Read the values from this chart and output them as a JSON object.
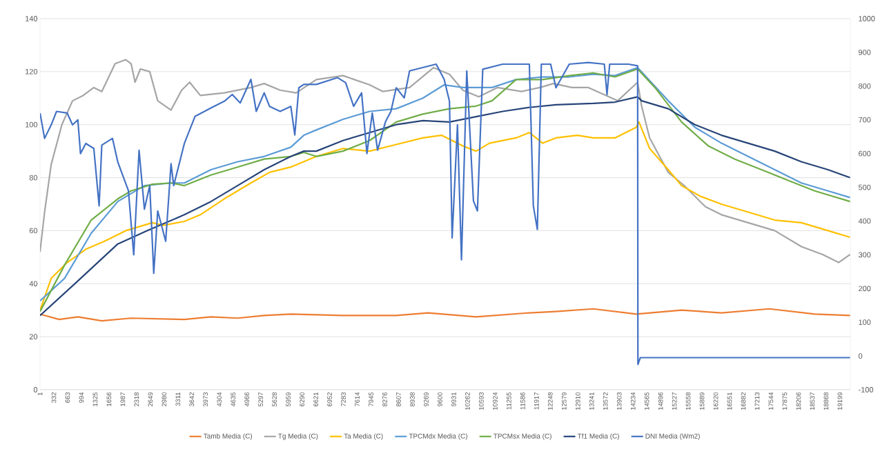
{
  "chart_data": {
    "type": "line",
    "xlim": [
      1,
      19450
    ],
    "ylim": [
      0,
      140
    ],
    "y2lim": [
      -100,
      1000
    ],
    "xticks": [
      1,
      332,
      663,
      994,
      1325,
      1656,
      1987,
      2318,
      2649,
      2980,
      3311,
      3642,
      3973,
      4304,
      4635,
      4966,
      5297,
      5628,
      5959,
      6290,
      6621,
      6952,
      7283,
      7614,
      7945,
      8276,
      8607,
      8938,
      9269,
      9600,
      9931,
      10262,
      10593,
      10924,
      11255,
      11586,
      11917,
      12248,
      12579,
      12910,
      13241,
      13572,
      13903,
      14234,
      14565,
      14896,
      15227,
      15558,
      15889,
      16220,
      16551,
      16882,
      17213,
      17544,
      17875,
      18206,
      18537,
      18868,
      19199
    ],
    "yticks": [
      0,
      20,
      40,
      60,
      80,
      100,
      120,
      140
    ],
    "y2ticks": [
      -100,
      0,
      100,
      200,
      300,
      400,
      500,
      600,
      700,
      800,
      900,
      1000
    ],
    "grid": "y",
    "legend": "bottom",
    "series": [
      {
        "name": "Tamb Media (C)",
        "color": "#ed7d31",
        "x": [
          1,
          461,
          908,
          1483,
          2186,
          3465,
          4103,
          4742,
          5381,
          6020,
          7272,
          8550,
          9317,
          10467,
          11745,
          12384,
          13279,
          14312,
          15399,
          16357,
          17507,
          18594,
          19443
        ],
        "values": [
          28.5,
          26.5,
          27.5,
          26,
          27,
          26.5,
          27.5,
          27,
          28,
          28.5,
          28,
          28,
          29,
          27.5,
          29,
          29.5,
          30.5,
          28.5,
          30,
          29,
          30.5,
          28.5,
          28
        ]
      },
      {
        "name": "Tg Media (C)",
        "color": "#a5a5a5",
        "x": [
          1,
          110,
          269,
          525,
          781,
          1036,
          1292,
          1483,
          1803,
          2059,
          2186,
          2282,
          2410,
          2634,
          2825,
          3145,
          3400,
          3592,
          3848,
          4423,
          5062,
          5381,
          5764,
          6148,
          6633,
          7272,
          7911,
          8231,
          8870,
          9445,
          9828,
          10148,
          10531,
          10978,
          11553,
          12001,
          12320,
          12767,
          13162,
          13865,
          14344,
          14440,
          14632,
          15079,
          15462,
          15973,
          16357,
          16996,
          17635,
          18274,
          18785,
          19169,
          19443
        ],
        "values": [
          52,
          67,
          85,
          100,
          109,
          111,
          114,
          112.5,
          123,
          124.5,
          123,
          116,
          121,
          120,
          109,
          105.5,
          113,
          116,
          111,
          112,
          114,
          115.5,
          113,
          112,
          117,
          118.5,
          115,
          112.5,
          114,
          121.5,
          119,
          113,
          110.5,
          114,
          112.5,
          114,
          115.5,
          114,
          114,
          109,
          116,
          107,
          95,
          82,
          77,
          69,
          66,
          63,
          60,
          54,
          51,
          48,
          51
        ]
      },
      {
        "name": "Ta Media (C)",
        "color": "#ffc000",
        "x": [
          1,
          269,
          653,
          1100,
          1547,
          2059,
          2697,
          2953,
          3465,
          3848,
          4423,
          5062,
          5509,
          6020,
          6633,
          7272,
          7911,
          8550,
          9189,
          9636,
          10148,
          10467,
          10787,
          11426,
          11745,
          12065,
          12384,
          12895,
          13279,
          13801,
          14312,
          14376,
          14632,
          15079,
          15399,
          15846,
          16357,
          16996,
          17635,
          18274,
          18913,
          19443
        ],
        "values": [
          30,
          42,
          48,
          53,
          56,
          60,
          63,
          62,
          63.5,
          66,
          72,
          78,
          82,
          84,
          88,
          91,
          90,
          92.5,
          95,
          96,
          92,
          90,
          93,
          95,
          97,
          93,
          95,
          96,
          95,
          95,
          99,
          101,
          91,
          83,
          77,
          73,
          70,
          67,
          64,
          63,
          60,
          57.5
        ]
      },
      {
        "name": "TPCMdx Media (C)",
        "color": "#5b9bd5",
        "x": [
          1,
          589,
          1228,
          1867,
          2506,
          3145,
          3465,
          4103,
          4742,
          5381,
          6020,
          6333,
          6633,
          7272,
          7911,
          8550,
          9189,
          9700,
          10148,
          10850,
          11426,
          12065,
          12703,
          13279,
          13801,
          14344,
          15079,
          15718,
          16357,
          16996,
          17635,
          18274,
          18913,
          19443
        ],
        "values": [
          33.5,
          42,
          59,
          71,
          77,
          78,
          78,
          83,
          86,
          88,
          91.5,
          96,
          98,
          102,
          105,
          106,
          110,
          115,
          114,
          114,
          117,
          118,
          118,
          119,
          118.5,
          121.5,
          109,
          99,
          93,
          88,
          83,
          78,
          75,
          72.5
        ]
      },
      {
        "name": "TPCMsx Media (C)",
        "color": "#70ad47",
        "x": [
          1,
          589,
          1228,
          1867,
          2186,
          2697,
          3145,
          3465,
          4103,
          4742,
          5381,
          6020,
          6333,
          6633,
          7272,
          7911,
          8550,
          9189,
          9828,
          10467,
          10850,
          11426,
          12065,
          12703,
          13279,
          13801,
          14344,
          14759,
          15399,
          16038,
          16677,
          17316,
          17955,
          18594,
          19443
        ],
        "values": [
          29.5,
          47,
          64,
          72,
          75,
          77.5,
          78,
          77,
          81,
          84,
          87,
          88,
          89.5,
          88,
          90,
          94,
          101,
          104,
          106,
          107,
          109,
          117,
          117,
          118.5,
          119.5,
          118,
          121,
          114,
          101,
          92,
          87,
          83,
          79,
          75,
          71
        ]
      },
      {
        "name": "Tf1 Media (C)",
        "color": "#264478",
        "x": [
          1,
          908,
          1867,
          2570,
          3465,
          4103,
          4742,
          5381,
          6020,
          6333,
          6633,
          7272,
          7911,
          8550,
          9189,
          9828,
          10467,
          11106,
          11745,
          12384,
          13279,
          13801,
          14344,
          14440,
          15079,
          15718,
          16357,
          16996,
          17635,
          18274,
          18913,
          19443
        ],
        "values": [
          28,
          41,
          55,
          60,
          66,
          71,
          77,
          83,
          88,
          90,
          90,
          94,
          97,
          100,
          101.5,
          101,
          103,
          105,
          106.5,
          107.5,
          108,
          108.5,
          110.5,
          109,
          106,
          100,
          96,
          93,
          90,
          86,
          83,
          80
        ]
      },
      {
        "name": "DNI Media (Wm2)",
        "color": "#4472c4",
        "axis": "y2",
        "x": [
          1,
          110,
          269,
          397,
          653,
          781,
          908,
          972,
          1100,
          1292,
          1419,
          1483,
          1739,
          1867,
          2122,
          2250,
          2378,
          2506,
          2634,
          2730,
          2825,
          3017,
          3145,
          3209,
          3465,
          3720,
          4103,
          4423,
          4614,
          4806,
          5062,
          5190,
          5381,
          5509,
          5764,
          6020,
          6116,
          6212,
          6333,
          6633,
          7144,
          7336,
          7528,
          7719,
          7847,
          7975,
          8103,
          8294,
          8422,
          8550,
          8742,
          8870,
          9509,
          9700,
          9828,
          9892,
          10020,
          10116,
          10243,
          10403,
          10499,
          10627,
          11106,
          11745,
          11841,
          11937,
          12033,
          12256,
          12384,
          12703,
          13162,
          13545,
          13609,
          13673,
          14121,
          14344,
          14351,
          14408,
          16357,
          19443
        ],
        "values": [
          720,
          645,
          685,
          725,
          720,
          685,
          700,
          600,
          630,
          615,
          445,
          625,
          645,
          575,
          490,
          300,
          610,
          435,
          505,
          245,
          430,
          340,
          570,
          505,
          630,
          710,
          735,
          755,
          775,
          750,
          820,
          725,
          780,
          740,
          725,
          740,
          655,
          795,
          805,
          805,
          825,
          810,
          740,
          780,
          600,
          720,
          610,
          695,
          725,
          795,
          765,
          845,
          865,
          820,
          755,
          350,
          685,
          285,
          845,
          460,
          430,
          850,
          865,
          865,
          445,
          375,
          865,
          865,
          795,
          865,
          870,
          865,
          775,
          865,
          865,
          860,
          -25,
          -5,
          -5,
          -5
        ]
      }
    ]
  }
}
